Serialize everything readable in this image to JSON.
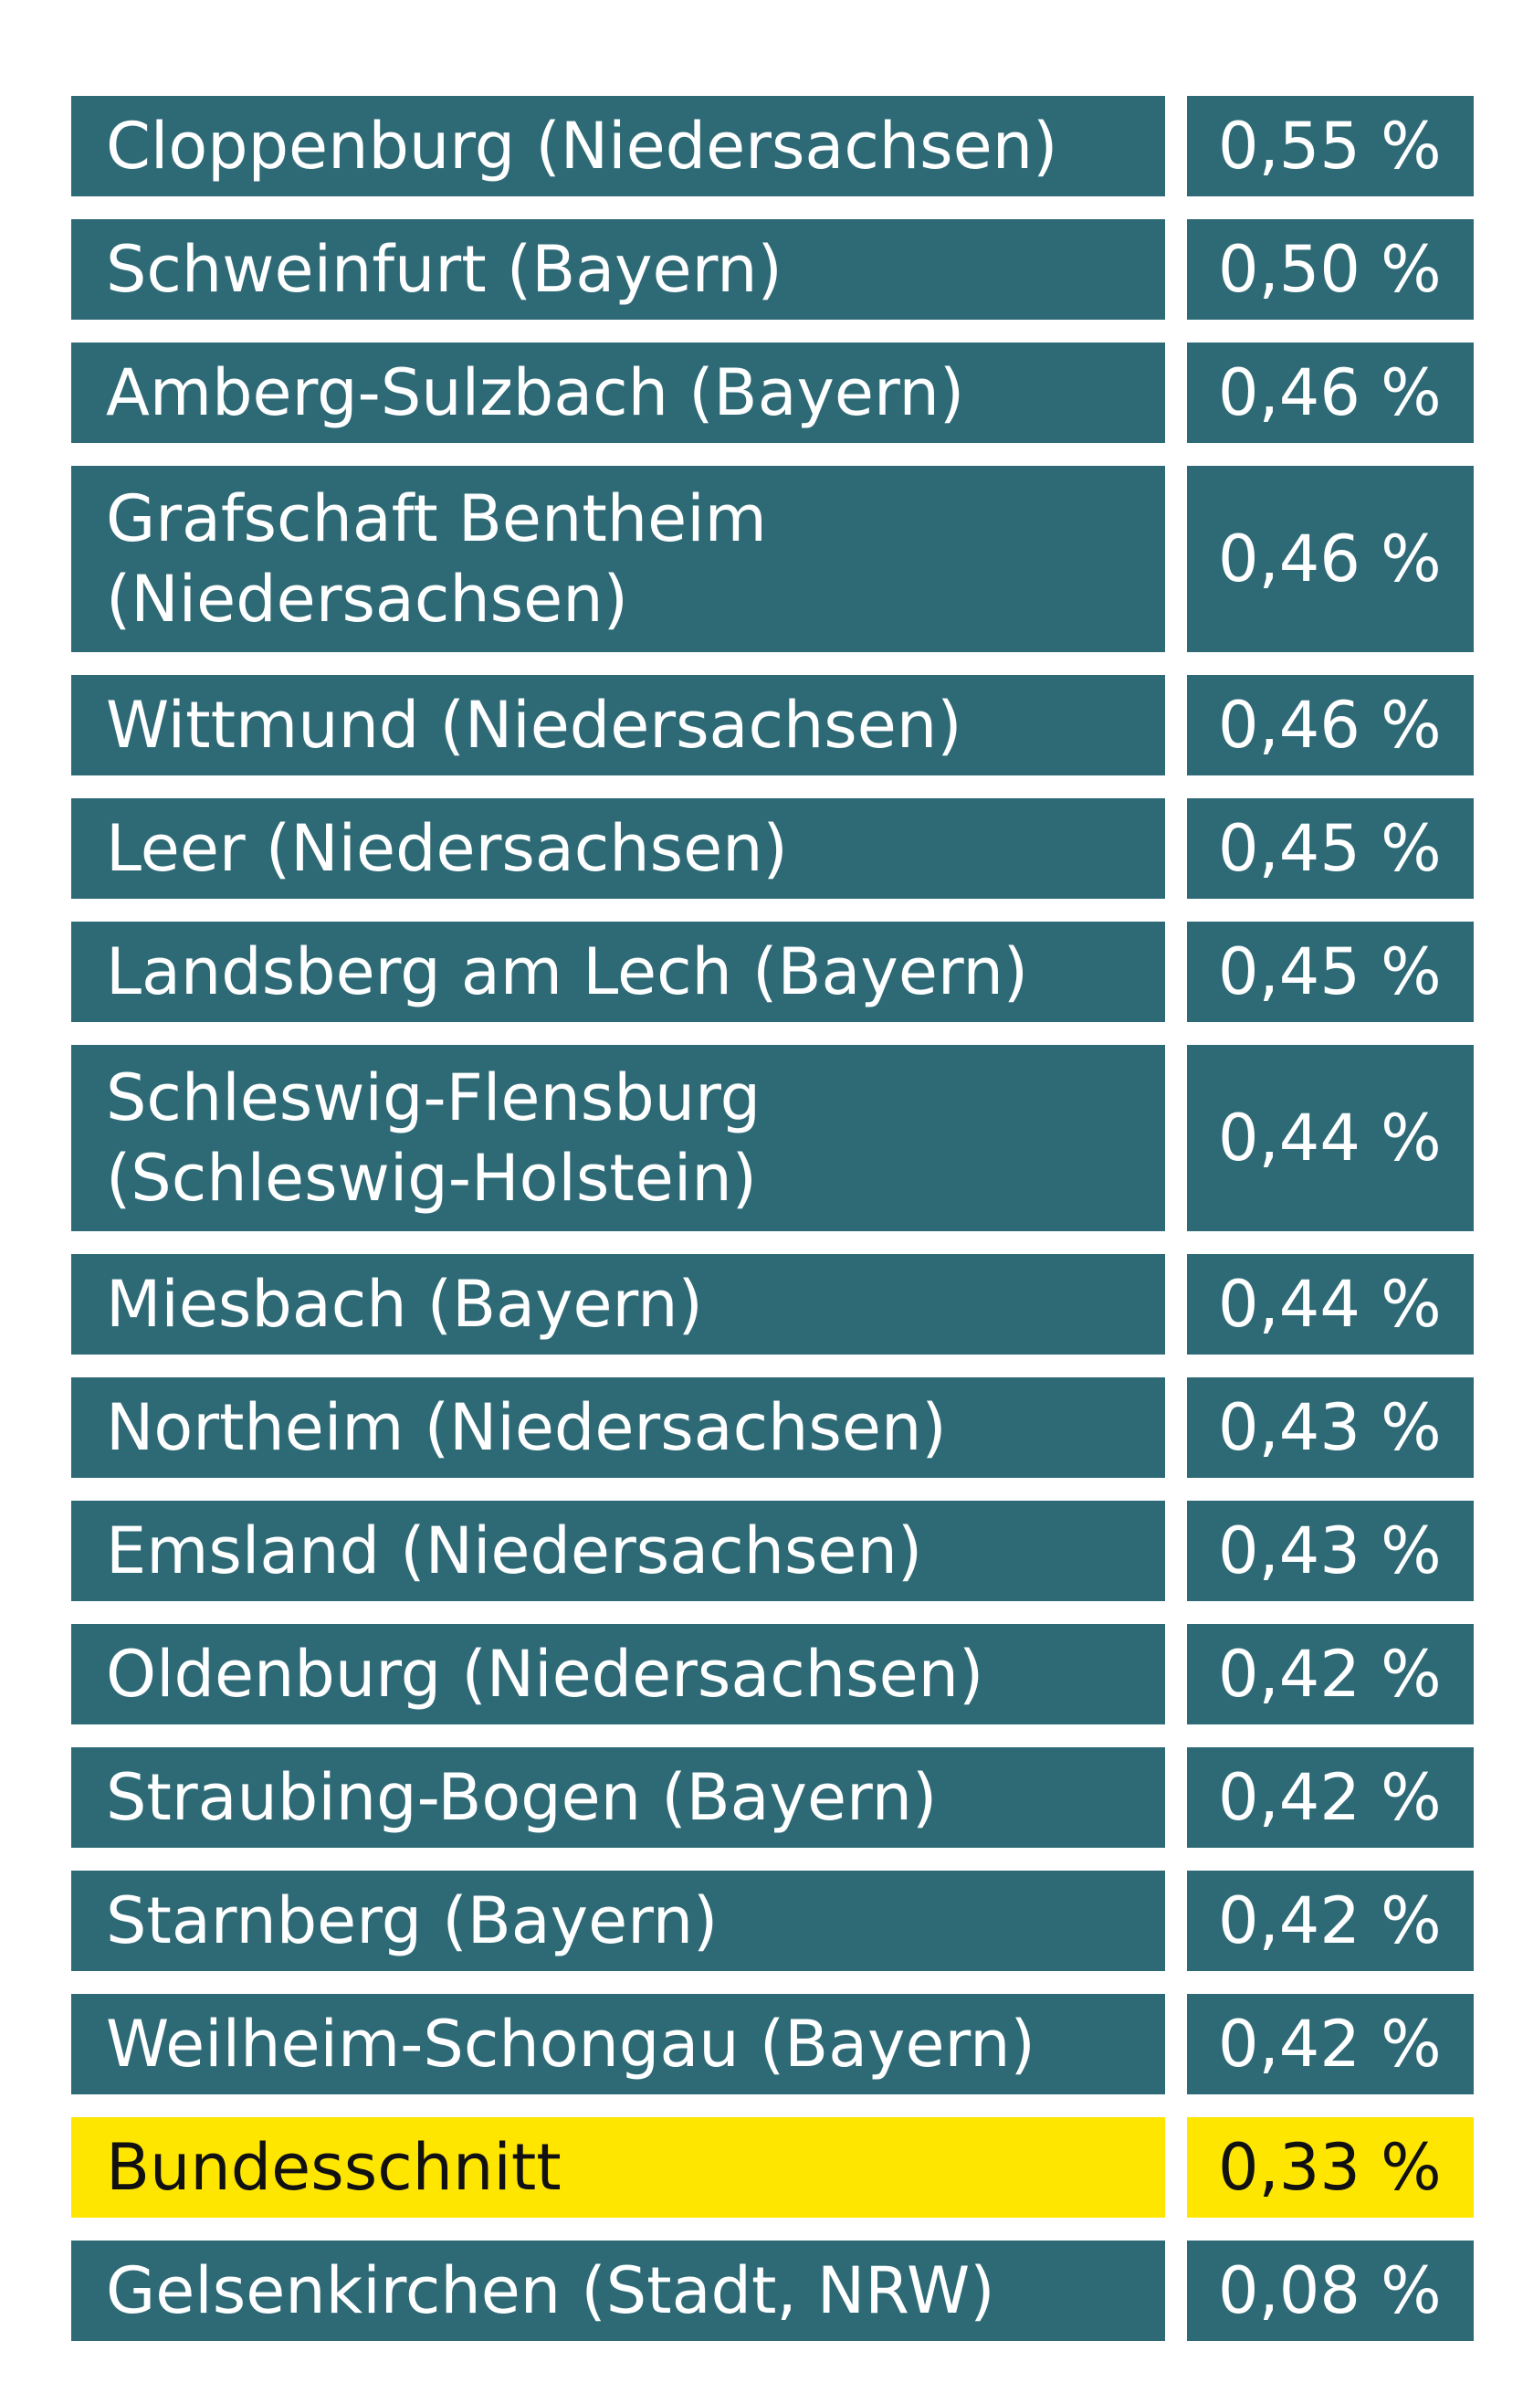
{
  "colors": {
    "row_background": "#2e6a76",
    "row_text": "#ffffff",
    "highlight_background": "#ffe600",
    "highlight_text": "#111111"
  },
  "chart_data": {
    "type": "table",
    "unit": "%",
    "highlight": "Bundesschnitt",
    "rows": [
      {
        "label": "Cloppenburg (Niedersachsen)",
        "value": 0.55,
        "display": "0,55 %"
      },
      {
        "label": "Schweinfurt (Bayern)",
        "value": 0.5,
        "display": "0,50 %"
      },
      {
        "label": "Amberg-Sulzbach (Bayern)",
        "value": 0.46,
        "display": "0,46 %"
      },
      {
        "label": "Grafschaft Bentheim\n(Niedersachsen)",
        "value": 0.46,
        "display": "0,46 %"
      },
      {
        "label": "Wittmund (Niedersachsen)",
        "value": 0.46,
        "display": "0,46 %"
      },
      {
        "label": "Leer (Niedersachsen)",
        "value": 0.45,
        "display": "0,45 %"
      },
      {
        "label": "Landsberg am Lech (Bayern)",
        "value": 0.45,
        "display": "0,45 %"
      },
      {
        "label": "Schleswig-Flensburg\n(Schleswig-Holstein)",
        "value": 0.44,
        "display": "0,44 %"
      },
      {
        "label": "Miesbach (Bayern)",
        "value": 0.44,
        "display": "0,44 %"
      },
      {
        "label": "Northeim (Niedersachsen)",
        "value": 0.43,
        "display": "0,43 %"
      },
      {
        "label": "Emsland (Niedersachsen)",
        "value": 0.43,
        "display": "0,43 %"
      },
      {
        "label": "Oldenburg (Niedersachsen)",
        "value": 0.42,
        "display": "0,42 %"
      },
      {
        "label": "Straubing-Bogen (Bayern)",
        "value": 0.42,
        "display": "0,42 %"
      },
      {
        "label": "Starnberg (Bayern)",
        "value": 0.42,
        "display": "0,42 %"
      },
      {
        "label": "Weilheim-Schongau (Bayern)",
        "value": 0.42,
        "display": "0,42 %"
      },
      {
        "label": "Bundesschnitt",
        "value": 0.33,
        "display": "0,33 %"
      },
      {
        "label": "Gelsenkirchen (Stadt, NRW)",
        "value": 0.08,
        "display": "0,08 %"
      }
    ]
  }
}
